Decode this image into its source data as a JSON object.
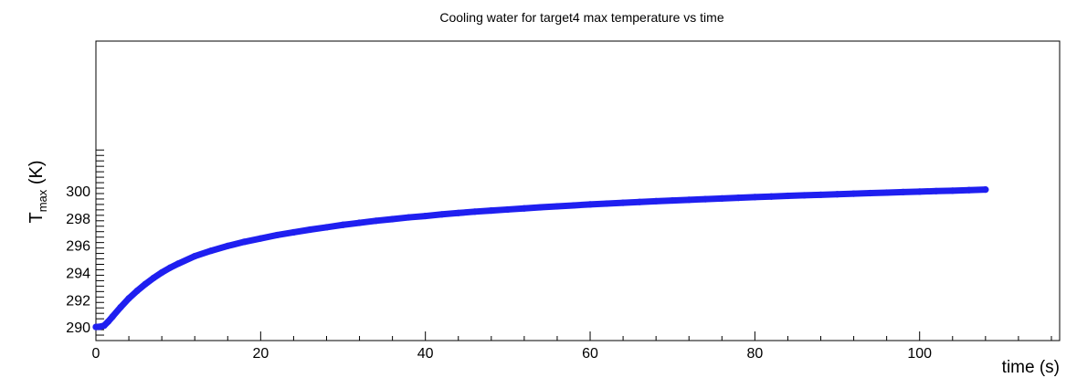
{
  "chart_data": {
    "type": "scatter",
    "title": "Cooling water for target4 max temperature vs time",
    "xlabel": "time (s)",
    "ylabel_main": "T",
    "ylabel_sub": "max",
    "ylabel_unit": " (K)",
    "xlim": [
      0,
      117
    ],
    "ylim": [
      289,
      311
    ],
    "x_ticks": [
      0,
      20,
      40,
      60,
      80,
      100
    ],
    "y_ticks": [
      290,
      292,
      294,
      296,
      298,
      300
    ],
    "grid": false,
    "marker_color": "#1f1ff0",
    "series": [
      {
        "x": [
          0,
          0.5,
          1,
          1.5,
          2,
          3,
          4,
          5,
          6,
          7,
          8,
          9,
          10,
          12,
          14,
          16,
          18,
          20,
          22,
          24,
          26,
          28,
          30,
          32,
          34,
          36,
          38,
          40,
          42,
          44,
          46,
          48,
          50,
          52,
          54,
          56,
          58,
          60,
          62,
          64,
          66,
          68,
          70,
          72,
          74,
          76,
          78,
          80,
          82,
          84,
          86,
          88,
          90,
          92,
          94,
          96,
          98,
          100,
          102,
          104,
          106,
          108
        ],
        "y": [
          290.0,
          290.02,
          290.1,
          290.4,
          290.75,
          291.45,
          292.1,
          292.65,
          293.15,
          293.6,
          294.0,
          294.35,
          294.65,
          295.2,
          295.6,
          295.95,
          296.25,
          296.5,
          296.75,
          296.95,
          297.15,
          297.32,
          297.5,
          297.65,
          297.8,
          297.92,
          298.05,
          298.15,
          298.27,
          298.37,
          298.47,
          298.55,
          298.63,
          298.71,
          298.79,
          298.86,
          298.93,
          299.0,
          299.06,
          299.12,
          299.18,
          299.24,
          299.29,
          299.34,
          299.39,
          299.44,
          299.49,
          299.54,
          299.58,
          299.63,
          299.67,
          299.71,
          299.75,
          299.79,
          299.83,
          299.87,
          299.91,
          299.94,
          299.98,
          300.01,
          300.05,
          300.09
        ]
      }
    ]
  }
}
